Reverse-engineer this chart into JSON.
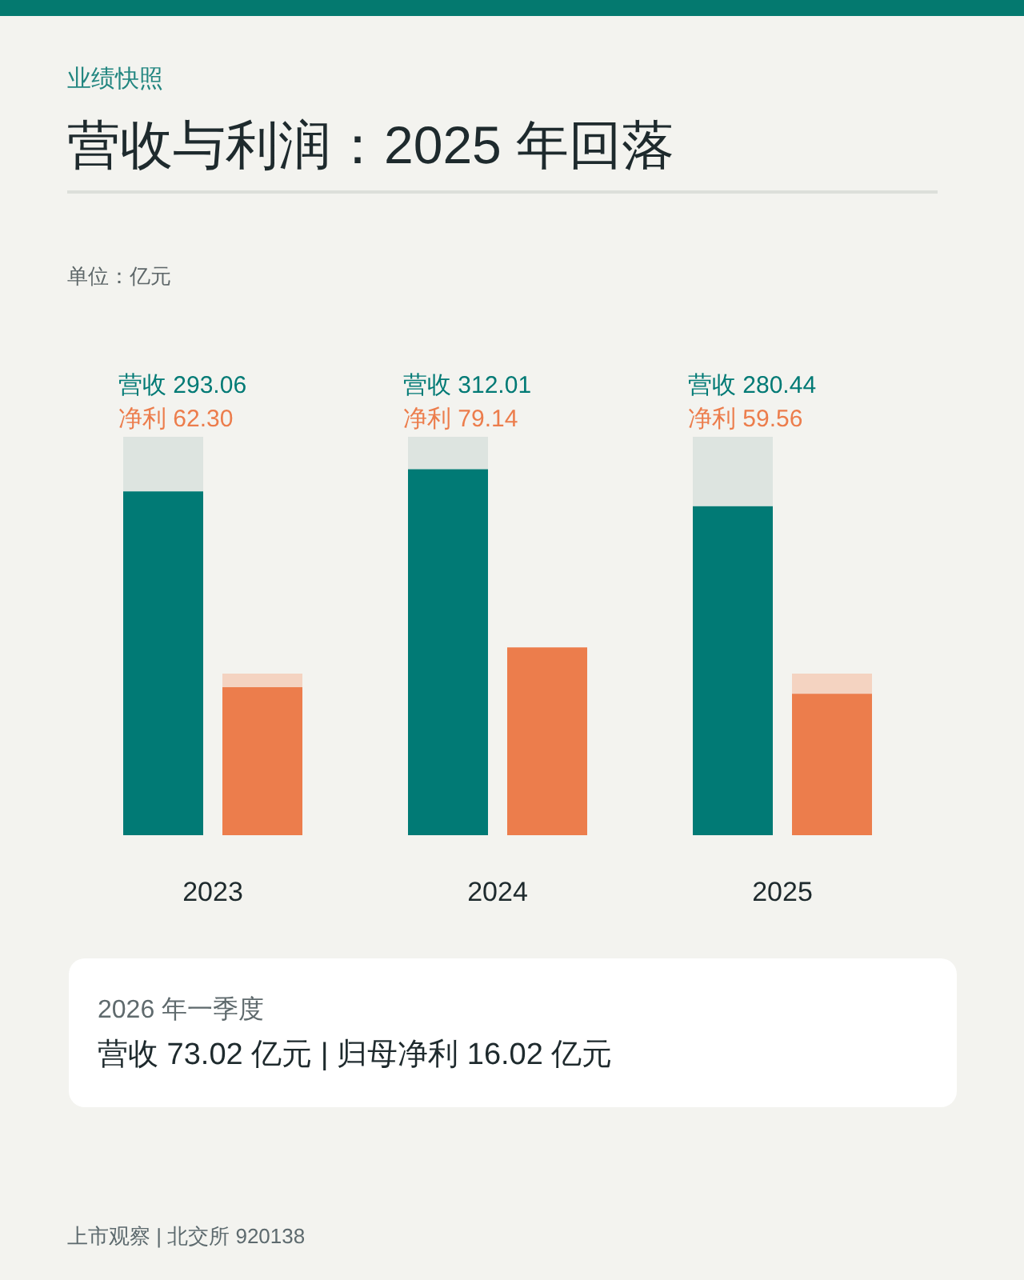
{
  "chart_data": {
    "type": "bar",
    "subtitle": "业绩快照",
    "title": "营收与利润：2025 年回落",
    "categories": [
      "2023",
      "2024",
      "2025"
    ],
    "series": [
      {
        "name": "营收",
        "color": "#017a75",
        "values": [
          293.06,
          312.01,
          280.44
        ],
        "value_labels": [
          "293.06",
          "312.01",
          "280.44"
        ]
      },
      {
        "name": "净利",
        "color": "#ec7d4c",
        "axis": "y2",
        "values": [
          62.3,
          79.14,
          59.56
        ],
        "value_labels": [
          "62.30",
          "79.14",
          "59.56"
        ]
      }
    ],
    "tick_labels": "x",
    "annotations": [
      "单位：亿元",
      "2026 年一季度",
      "营收 73.02 亿元 | 归母净利 16.02 亿元",
      "上市观察 | 北交所 920138"
    ]
  }
}
